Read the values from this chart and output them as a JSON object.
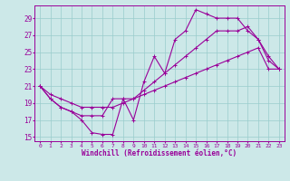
{
  "xlabel": "Windchill (Refroidissement éolien,°C)",
  "xlim": [
    -0.5,
    23.5
  ],
  "ylim": [
    14.5,
    30.5
  ],
  "x_ticks": [
    0,
    1,
    2,
    3,
    4,
    5,
    6,
    7,
    8,
    9,
    10,
    11,
    12,
    13,
    14,
    15,
    16,
    17,
    18,
    19,
    20,
    21,
    22,
    23
  ],
  "y_ticks": [
    15,
    17,
    19,
    21,
    23,
    25,
    27,
    29
  ],
  "bg_color": "#cce8e8",
  "line_color": "#990099",
  "grid_color": "#99cccc",
  "line1_y": [
    21.0,
    19.5,
    18.5,
    18.0,
    17.0,
    15.5,
    15.3,
    15.3,
    19.5,
    17.0,
    21.5,
    24.5,
    22.5,
    26.5,
    27.5,
    30.0,
    29.5,
    29.0,
    29.0,
    29.0,
    27.5,
    26.5,
    24.5,
    23.0
  ],
  "line2_y": [
    21.0,
    19.5,
    18.5,
    18.0,
    17.5,
    17.5,
    17.5,
    19.5,
    19.5,
    19.5,
    20.5,
    21.5,
    22.5,
    23.5,
    24.5,
    25.5,
    26.5,
    27.5,
    27.5,
    27.5,
    28.0,
    26.5,
    24.0,
    23.0
  ],
  "line3_y": [
    21.0,
    20.0,
    19.5,
    19.0,
    18.5,
    18.5,
    18.5,
    18.5,
    19.0,
    19.5,
    20.0,
    20.5,
    21.0,
    21.5,
    22.0,
    22.5,
    23.0,
    23.5,
    24.0,
    24.5,
    25.0,
    25.5,
    23.0,
    23.0
  ]
}
